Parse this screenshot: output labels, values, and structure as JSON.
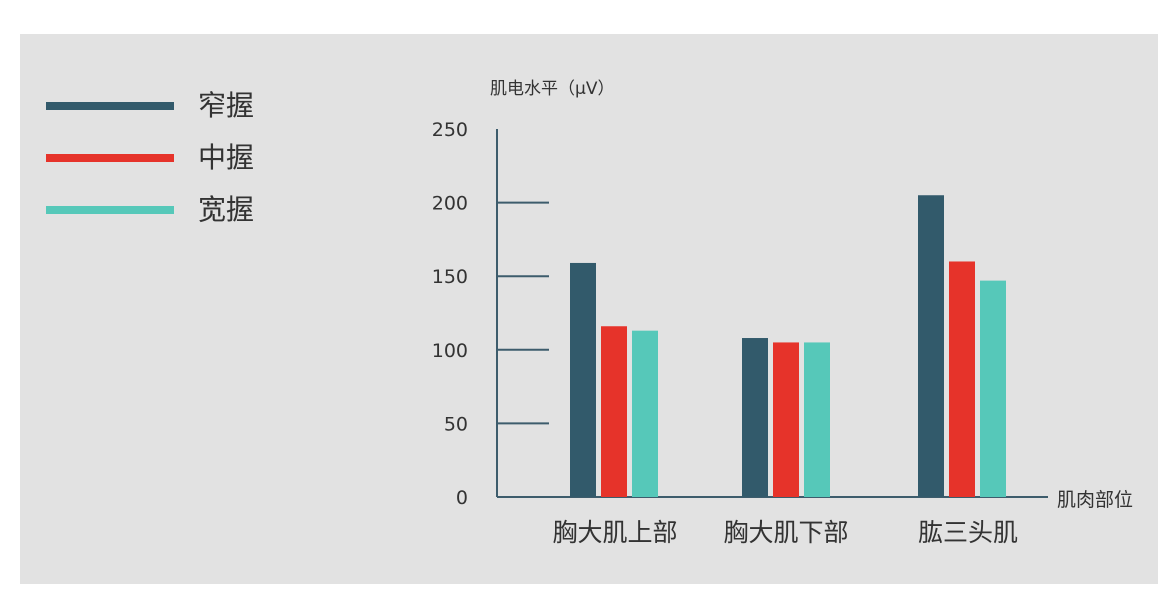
{
  "chart_data": {
    "type": "bar",
    "ylabel": "肌电水平（μV）",
    "xlabel": "肌肉部位",
    "categories": [
      "胸大肌上部",
      "胸大肌下部",
      "肱三头肌"
    ],
    "series": [
      {
        "name": "窄握",
        "color": "#325a6b",
        "values": [
          159,
          108,
          205
        ]
      },
      {
        "name": "中握",
        "color": "#e6332a",
        "values": [
          116,
          105,
          160
        ]
      },
      {
        "name": "宽握",
        "color": "#56c8b9",
        "values": [
          113,
          105,
          147
        ]
      }
    ],
    "ylim": [
      0,
      250
    ],
    "yticks": [
      0,
      50,
      100,
      150,
      200,
      250
    ],
    "grid": false,
    "legend_position": "left"
  },
  "colors": {
    "panel_bg": "#e2e2e2",
    "axis": "#3d5c6c",
    "text": "#333333"
  }
}
